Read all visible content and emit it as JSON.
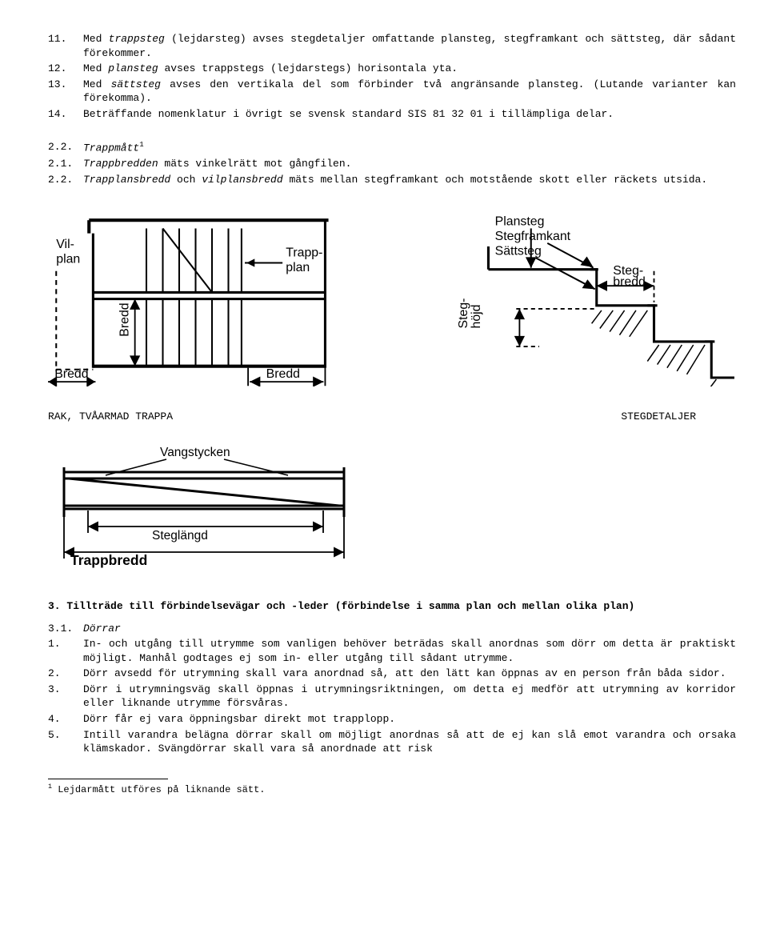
{
  "items": [
    {
      "n": "11.",
      "txt": "Med <i>trappsteg</i> (lejdarsteg) avses stegdetaljer omfattande plansteg, stegframkant och sättsteg, där sådant förekommer."
    },
    {
      "n": "12.",
      "txt": "Med <i>plansteg</i> avses trappstegs (lejdarstegs) horisontala yta."
    },
    {
      "n": "13.",
      "txt": "Med <i>sättsteg</i> avses den vertikala del som förbinder två angränsande plansteg. (Lutande varianter kan förekomma)."
    },
    {
      "n": "14.",
      "txt": "Beträffande nomenklatur i övrigt se svensk standard SIS 81 32 01 i tillämpliga delar."
    }
  ],
  "trapp": [
    {
      "n": "2.2.",
      "txt": "<i>Trappmått</i><span class=\"sup\">1</span>"
    },
    {
      "n": "2.1.",
      "txt": "<i>Trappbredden</i> mäts vinkelrätt mot gångfilen."
    },
    {
      "n": "2.2.",
      "txt": "<i>Trapplansbredd</i> och <i>vilplansbredd</i> mäts mellan stegframkant och motstående skott eller räckets utsida."
    }
  ],
  "caption_left": "RAK,  TVÅARMAD  TRAPPA",
  "caption_right": "STEGDETALJER",
  "sec3_title": "3. Tillträde till förbindelsevägar och -leder (förbindelse i samma plan och mellan olika plan)",
  "dorrar_head": {
    "n": "3.1.",
    "txt": "<i>Dörrar</i>"
  },
  "dorrar": [
    {
      "n": "1.",
      "txt": "In- och utgång till utrymme som vanligen behöver beträdas skall anordnas som dörr om detta är praktiskt möjligt. Manhål godtages ej som in- eller utgång till sådant utrymme."
    },
    {
      "n": "2.",
      "txt": "Dörr avsedd för utrymning skall vara anordnad så, att den lätt kan öppnas av en person från båda sidor."
    },
    {
      "n": "3.",
      "txt": "Dörr i utrymningsväg skall öppnas i utrymningsriktningen, om detta ej medför att utrymning av korridor eller liknande utrymme försvåras."
    },
    {
      "n": "4.",
      "txt": "Dörr får ej vara öppningsbar direkt mot trapplopp."
    },
    {
      "n": "5.",
      "txt": "Intill varandra belägna dörrar skall om möjligt anordnas så att de ej kan slå emot varandra och orsaka klämskador. Svängdörrar skall vara så anordnade att risk"
    }
  ],
  "footnote": "<span class=\"sup\">1</span> Lejdarmått utföres på liknande sätt.",
  "fig1_labels": {
    "vilplan_top": "Vil-",
    "vilplan_bot": "plan",
    "trappplan_top": "Trapp-",
    "trappplan_bot": "plan",
    "bredd": "Bredd"
  },
  "fig2_labels": {
    "plansteg": "Plansteg",
    "stegframkant": "Stegframkant",
    "sattsteg": "Sättsteg",
    "stegbredd_top": "Steg-",
    "stegbredd_bot": "bredd",
    "steghojd1": "Steg-",
    "steghojd2": "höjd"
  },
  "fig3_labels": {
    "vangstycken": "Vangstycken",
    "steglangd": "Steglängd",
    "trappbredd": "Trappbredd"
  }
}
